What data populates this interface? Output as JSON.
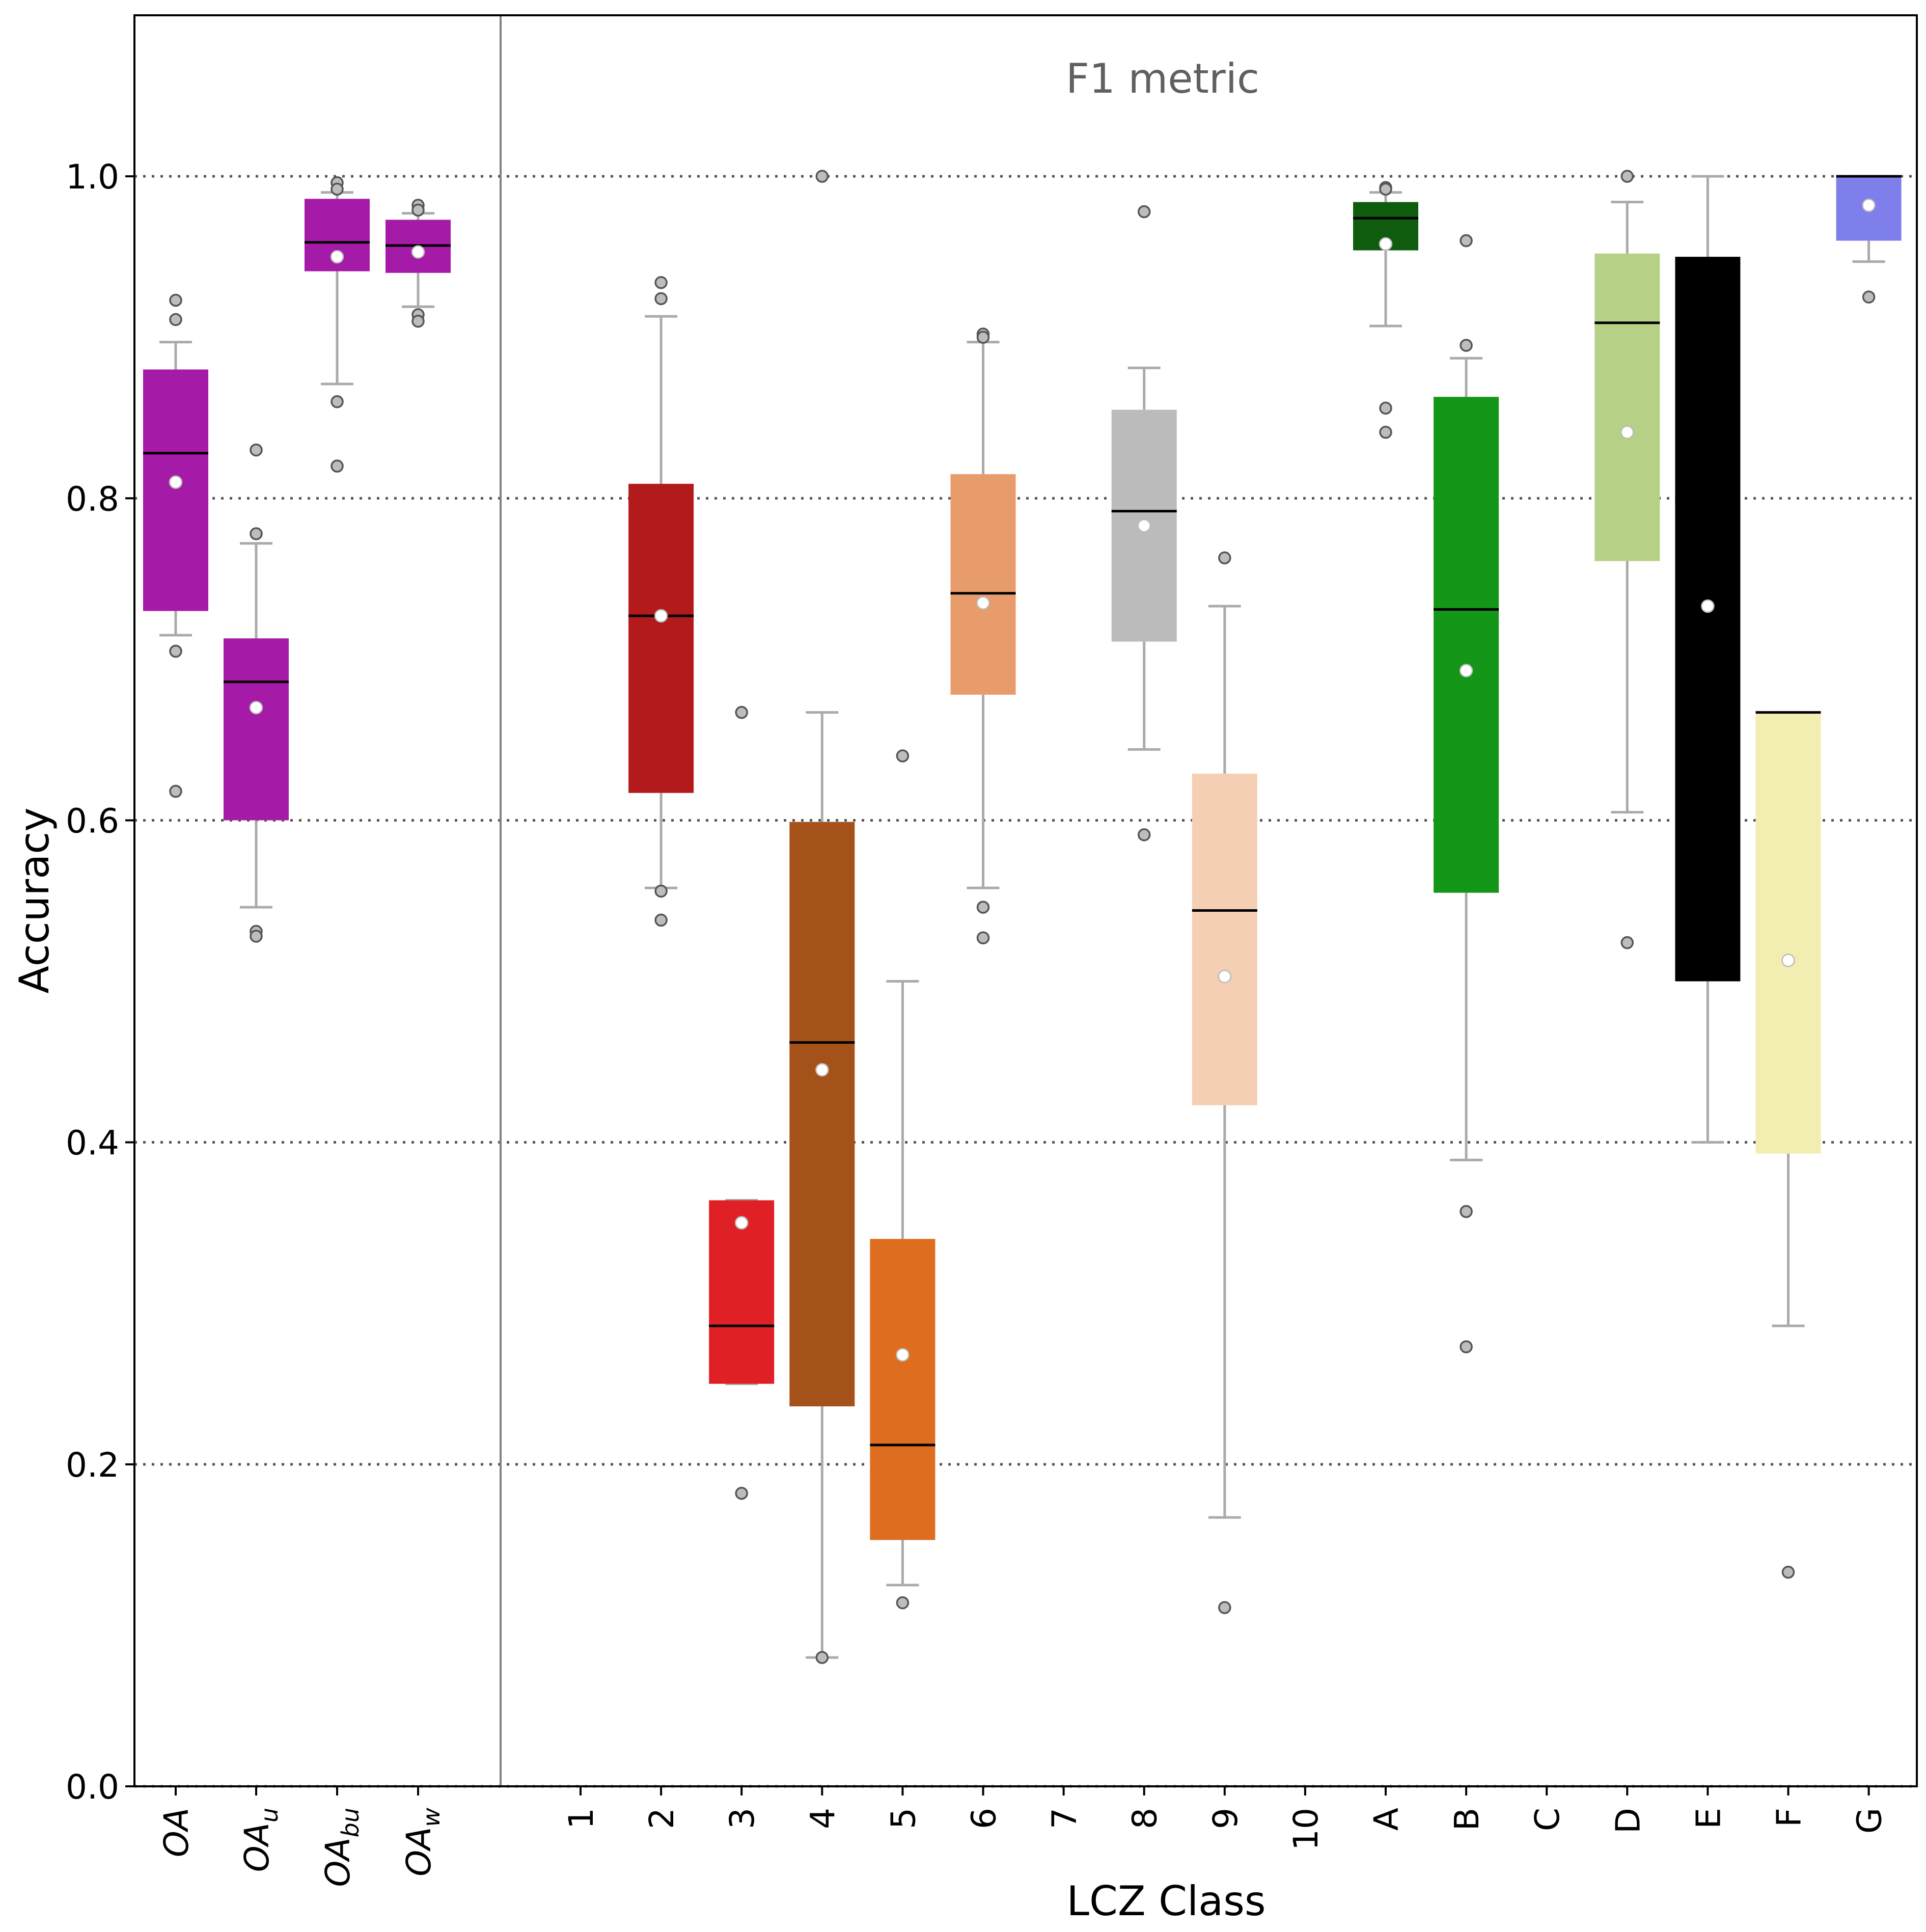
{
  "chart_data": {
    "type": "box",
    "annotation": "F1 metric",
    "xlabel": "LCZ Class",
    "ylabel": "Accuracy",
    "ylim": [
      0.0,
      1.1
    ],
    "yticks": [
      "0.0",
      "0.2",
      "0.4",
      "0.6",
      "0.8",
      "1.0"
    ],
    "grid": "horizontal dotted at y ticks",
    "categories": [
      {
        "label": "OA",
        "sub": "",
        "color": "#A61AA8",
        "q1": 0.73,
        "q3": 0.88,
        "median": 0.828,
        "mean": 0.81,
        "whisker_low": 0.715,
        "whisker_high": 0.897,
        "outliers": [
          0.923,
          0.911,
          0.705,
          0.618
        ]
      },
      {
        "label": "OA",
        "sub": "u",
        "color": "#A61AA8",
        "q1": 0.6,
        "q3": 0.713,
        "median": 0.686,
        "mean": 0.67,
        "whisker_low": 0.546,
        "whisker_high": 0.772,
        "outliers": [
          0.83,
          0.778,
          0.531,
          0.528
        ]
      },
      {
        "label": "OA",
        "sub": "bu",
        "color": "#A61AA8",
        "q1": 0.941,
        "q3": 0.986,
        "median": 0.959,
        "mean": 0.95,
        "whisker_low": 0.871,
        "whisker_high": 0.99,
        "outliers": [
          0.996,
          0.992,
          0.86,
          0.82
        ]
      },
      {
        "label": "OA",
        "sub": "w",
        "color": "#A61AA8",
        "q1": 0.94,
        "q3": 0.973,
        "median": 0.957,
        "mean": 0.953,
        "whisker_low": 0.919,
        "whisker_high": 0.977,
        "outliers": [
          0.982,
          0.979,
          0.914,
          0.91
        ]
      },
      {
        "label": "1",
        "sub": "",
        "color": null
      },
      {
        "label": "2",
        "sub": "",
        "color": "#B31A1C",
        "q1": 0.617,
        "q3": 0.809,
        "median": 0.727,
        "mean": 0.727,
        "whisker_low": 0.558,
        "whisker_high": 0.913,
        "outliers": [
          0.934,
          0.924,
          0.556,
          0.538
        ]
      },
      {
        "label": "3",
        "sub": "",
        "color": "#DF2125",
        "q1": 0.25,
        "q3": 0.364,
        "median": 0.286,
        "mean": 0.35,
        "whisker_low": 0.25,
        "whisker_high": 0.364,
        "outliers": [
          0.667,
          0.182
        ]
      },
      {
        "label": "4",
        "sub": "",
        "color": "#A5521A",
        "q1": 0.236,
        "q3": 0.599,
        "median": 0.462,
        "mean": 0.445,
        "whisker_low": 0.08,
        "whisker_high": 0.667,
        "outliers": [
          1.0,
          0.08
        ]
      },
      {
        "label": "5",
        "sub": "",
        "color": "#DF6D20",
        "q1": 0.153,
        "q3": 0.34,
        "median": 0.212,
        "mean": 0.268,
        "whisker_low": 0.125,
        "whisker_high": 0.5,
        "outliers": [
          0.64,
          0.114
        ]
      },
      {
        "label": "6",
        "sub": "",
        "color": "#E89C6B",
        "q1": 0.678,
        "q3": 0.815,
        "median": 0.741,
        "mean": 0.735,
        "whisker_low": 0.558,
        "whisker_high": 0.897,
        "outliers": [
          0.902,
          0.9,
          0.546,
          0.527
        ]
      },
      {
        "label": "7",
        "sub": "",
        "color": null
      },
      {
        "label": "8",
        "sub": "",
        "color": "#BBBBBB",
        "q1": 0.711,
        "q3": 0.855,
        "median": 0.792,
        "mean": 0.783,
        "whisker_low": 0.644,
        "whisker_high": 0.881,
        "outliers": [
          0.978,
          0.591
        ]
      },
      {
        "label": "9",
        "sub": "",
        "color": "#F4CFB4",
        "q1": 0.423,
        "q3": 0.629,
        "median": 0.544,
        "mean": 0.503,
        "whisker_low": 0.167,
        "whisker_high": 0.733,
        "outliers": [
          0.763,
          0.111
        ]
      },
      {
        "label": "10",
        "sub": "",
        "color": null
      },
      {
        "label": "A",
        "sub": "",
        "color": "#0F5C0F",
        "q1": 0.954,
        "q3": 0.984,
        "median": 0.974,
        "mean": 0.958,
        "whisker_low": 0.907,
        "whisker_high": 0.99,
        "outliers": [
          0.993,
          0.992,
          0.856,
          0.841
        ]
      },
      {
        "label": "B",
        "sub": "",
        "color": "#149619",
        "q1": 0.555,
        "q3": 0.863,
        "median": 0.731,
        "mean": 0.693,
        "whisker_low": 0.389,
        "whisker_high": 0.887,
        "outliers": [
          0.96,
          0.895,
          0.357,
          0.273
        ]
      },
      {
        "label": "C",
        "sub": "",
        "color": null
      },
      {
        "label": "D",
        "sub": "",
        "color": "#B6D186",
        "q1": 0.761,
        "q3": 0.952,
        "median": 0.909,
        "mean": 0.841,
        "whisker_low": 0.605,
        "whisker_high": 0.984,
        "outliers": [
          1.0,
          0.524
        ]
      },
      {
        "label": "E",
        "sub": "",
        "color": "#000000",
        "q1": 0.5,
        "q3": 0.95,
        "median": 0.8,
        "mean": 0.733,
        "whisker_low": 0.4,
        "whisker_high": 1.0,
        "outliers": []
      },
      {
        "label": "F",
        "sub": "",
        "color": "#F2EEB2",
        "q1": 0.393,
        "q3": 0.667,
        "median": 0.667,
        "mean": 0.513,
        "whisker_low": 0.286,
        "whisker_high": 0.667,
        "outliers": [
          0.133
        ]
      },
      {
        "label": "G",
        "sub": "",
        "color": "#7F7FEC",
        "q1": 0.96,
        "q3": 1.0,
        "median": 1.0,
        "mean": 0.982,
        "whisker_low": 0.947,
        "whisker_high": 1.0,
        "outliers": [
          0.925
        ]
      }
    ]
  }
}
